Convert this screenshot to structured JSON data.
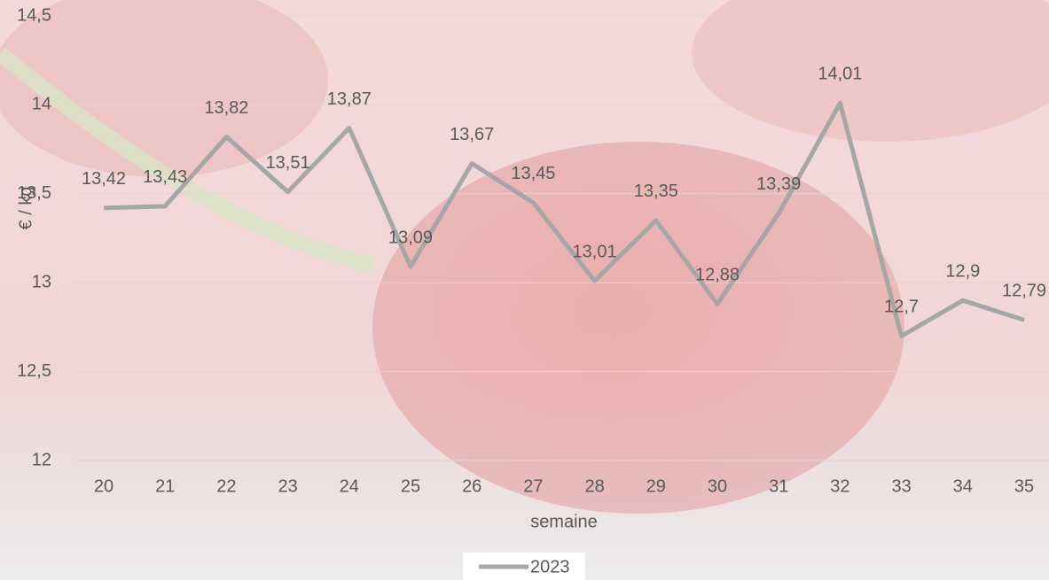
{
  "chart_data": {
    "type": "line",
    "x_label": "semaine",
    "y_label": "€ / kg",
    "categories": [
      "20",
      "21",
      "22",
      "23",
      "24",
      "25",
      "26",
      "27",
      "28",
      "29",
      "30",
      "31",
      "32",
      "33",
      "34",
      "35"
    ],
    "series": [
      {
        "name": "2023",
        "color": "#a6a6a6",
        "values": [
          13.42,
          13.43,
          13.82,
          13.51,
          13.87,
          13.09,
          13.67,
          13.45,
          13.01,
          13.35,
          12.88,
          13.39,
          14.01,
          12.7,
          12.9,
          12.79
        ],
        "value_labels": [
          "13,42",
          "13,43",
          "13,82",
          "13,51",
          "13,87",
          "13,09",
          "13,67",
          "13,45",
          "13,01",
          "13,35",
          "12,88",
          "13,39",
          "14,01",
          "12,7",
          "12,9",
          "12,79"
        ]
      }
    ],
    "ylim": [
      12,
      14.5
    ],
    "yticks": [
      {
        "value": 12,
        "label": "12"
      },
      {
        "value": 12.5,
        "label": "12,5"
      },
      {
        "value": 13,
        "label": "13"
      },
      {
        "value": 13.5,
        "label": "13,5"
      },
      {
        "value": 14,
        "label": "14"
      },
      {
        "value": 14.5,
        "label": "14,5"
      }
    ],
    "grid": true,
    "legend": "bottom"
  }
}
